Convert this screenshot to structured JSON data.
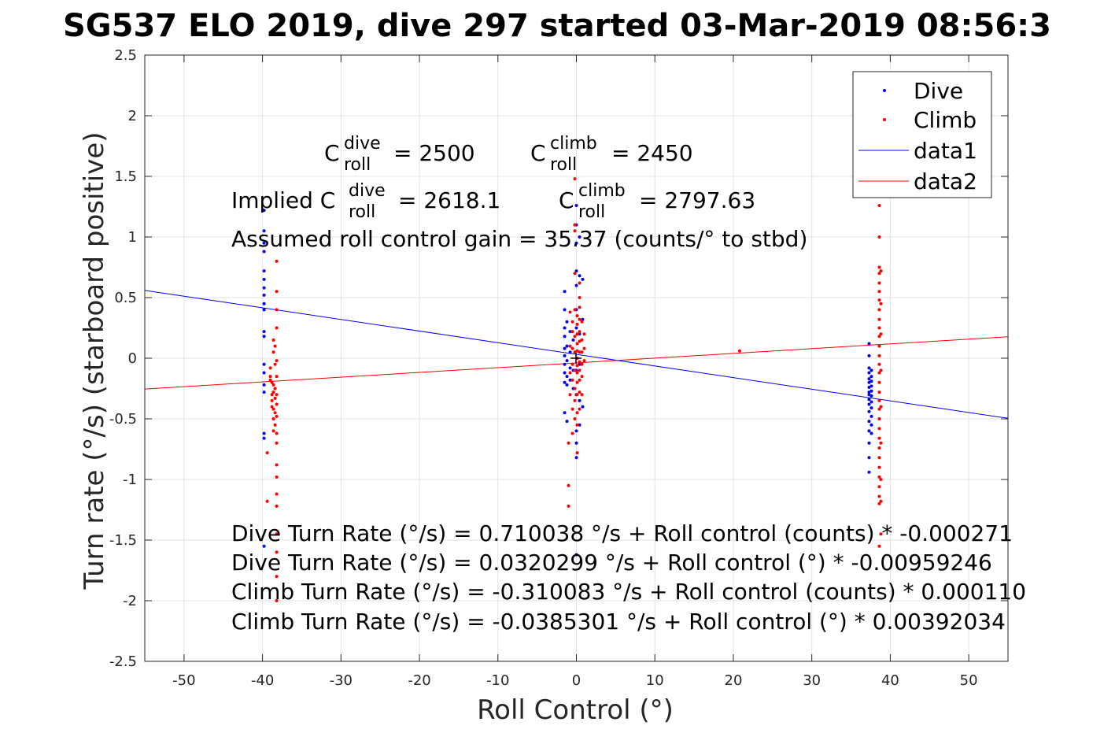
{
  "chart_data": {
    "type": "scatter",
    "title": "SG537 ELO 2019, dive 297 started 03-Mar-2019 08:56:3",
    "xlabel": "Roll Control (°)",
    "ylabel": "Turn rate (°/s) (starboard positive)",
    "xlim": [
      -55,
      55
    ],
    "ylim": [
      -2.5,
      2.5
    ],
    "xticks": [
      -50,
      -40,
      -30,
      -20,
      -10,
      0,
      10,
      20,
      30,
      40,
      50
    ],
    "yticks": [
      2.5,
      2,
      1.5,
      1,
      0.5,
      0,
      -0.5,
      -1,
      -1.5,
      -2,
      -2.5
    ],
    "grid": true,
    "legend_position": "top-right",
    "series": [
      {
        "name": "Dive",
        "kind": "points",
        "color": "#0000ff",
        "points": [
          [
            -39.8,
            1.22
          ],
          [
            -39.8,
            1.05
          ],
          [
            -39.8,
            0.95
          ],
          [
            -39.8,
            0.88
          ],
          [
            -39.8,
            0.72
          ],
          [
            -39.8,
            0.65
          ],
          [
            -39.8,
            0.58
          ],
          [
            -39.8,
            0.52
          ],
          [
            -39.8,
            0.45
          ],
          [
            -39.8,
            0.4
          ],
          [
            -39.8,
            0.22
          ],
          [
            -39.8,
            0.18
          ],
          [
            -39.8,
            -0.05
          ],
          [
            -39.8,
            -0.12
          ],
          [
            -39.8,
            -0.22
          ],
          [
            -39.8,
            -0.28
          ],
          [
            -39.8,
            -0.62
          ],
          [
            -39.8,
            -0.66
          ],
          [
            -39.8,
            -1.55
          ],
          [
            -1.5,
            0.55
          ],
          [
            -1.5,
            0.4
          ],
          [
            -1.5,
            0.25
          ],
          [
            -1.5,
            0.18
          ],
          [
            -1.5,
            0.08
          ],
          [
            -1.5,
            0.02
          ],
          [
            -1.5,
            -0.05
          ],
          [
            -1.5,
            -0.12
          ],
          [
            -1.5,
            -0.2
          ],
          [
            -1.5,
            -0.45
          ],
          [
            -1.2,
            0.3
          ],
          [
            -1.2,
            0.1
          ],
          [
            -1.2,
            -0.02
          ],
          [
            -1.2,
            -0.15
          ],
          [
            -1.2,
            -0.22
          ],
          [
            -1.2,
            -0.52
          ],
          [
            -0.8,
            0.22
          ],
          [
            -0.8,
            0.05
          ],
          [
            -0.8,
            -0.08
          ],
          [
            -0.8,
            -0.18
          ],
          [
            -0.4,
            0.15
          ],
          [
            -0.4,
            -0.1
          ],
          [
            -0.4,
            -0.25
          ],
          [
            0.0,
            1.26
          ],
          [
            0.0,
            1.1
          ],
          [
            0.0,
            0.95
          ],
          [
            0.0,
            0.72
          ],
          [
            0.0,
            0.6
          ],
          [
            0.0,
            0.4
          ],
          [
            0.0,
            0.25
          ],
          [
            0.0,
            -0.1
          ],
          [
            0.0,
            -0.3
          ],
          [
            0.0,
            -0.6
          ],
          [
            0.0,
            -0.7
          ],
          [
            0.0,
            -0.82
          ],
          [
            0.0,
            -1.62
          ],
          [
            0.4,
            1.0
          ],
          [
            0.4,
            0.68
          ],
          [
            0.4,
            0.2
          ],
          [
            0.4,
            -0.05
          ],
          [
            0.4,
            -0.35
          ],
          [
            0.4,
            -0.55
          ],
          [
            0.8,
            0.65
          ],
          [
            0.8,
            0.32
          ],
          [
            0.8,
            -0.4
          ],
          [
            37.3,
            0.12
          ],
          [
            37.3,
            0.02
          ],
          [
            37.3,
            -0.08
          ],
          [
            37.3,
            -0.12
          ],
          [
            37.3,
            -0.17
          ],
          [
            37.3,
            -0.2
          ],
          [
            37.3,
            -0.24
          ],
          [
            37.3,
            -0.28
          ],
          [
            37.3,
            -0.3
          ],
          [
            37.3,
            -0.34
          ],
          [
            37.3,
            -0.38
          ],
          [
            37.3,
            -0.44
          ],
          [
            37.3,
            -0.52
          ],
          [
            37.3,
            -0.6
          ],
          [
            37.3,
            -0.7
          ],
          [
            37.3,
            -0.82
          ],
          [
            37.3,
            -0.94
          ],
          [
            37.6,
            -0.1
          ],
          [
            37.6,
            -0.15
          ],
          [
            37.6,
            -0.19
          ],
          [
            37.6,
            -0.23
          ],
          [
            37.6,
            -0.27
          ],
          [
            37.6,
            -0.31
          ],
          [
            37.6,
            -0.36
          ],
          [
            37.6,
            -0.41
          ],
          [
            37.6,
            -0.48
          ],
          [
            37.6,
            -0.55
          ],
          [
            37.6,
            -0.62
          ]
        ]
      },
      {
        "name": "Climb",
        "kind": "points",
        "color": "#ff0000",
        "points": [
          [
            -39.0,
            -0.08
          ],
          [
            -39.0,
            -0.15
          ],
          [
            -39.0,
            -0.18
          ],
          [
            -38.8,
            -0.2
          ],
          [
            -38.8,
            -0.3
          ],
          [
            -38.8,
            -0.35
          ],
          [
            -38.8,
            -0.4
          ],
          [
            -38.6,
            0.15
          ],
          [
            -38.6,
            0.05
          ],
          [
            -38.6,
            -0.22
          ],
          [
            -38.6,
            -0.28
          ],
          [
            -38.6,
            -0.42
          ],
          [
            -38.6,
            -0.5
          ],
          [
            -38.6,
            -0.6
          ],
          [
            -38.4,
            0.1
          ],
          [
            -38.4,
            -0.05
          ],
          [
            -38.4,
            -0.25
          ],
          [
            -38.4,
            -0.33
          ],
          [
            -38.4,
            -0.45
          ],
          [
            -38.4,
            -0.55
          ],
          [
            -38.2,
            0.8
          ],
          [
            -38.2,
            0.55
          ],
          [
            -38.2,
            0.4
          ],
          [
            -38.2,
            0.25
          ],
          [
            -38.2,
            -0.02
          ],
          [
            -38.2,
            -0.15
          ],
          [
            -38.2,
            -0.3
          ],
          [
            -38.2,
            -0.38
          ],
          [
            -38.2,
            -0.48
          ],
          [
            -38.2,
            -0.62
          ],
          [
            -38.2,
            -0.7
          ],
          [
            -38.2,
            -0.88
          ],
          [
            -38.2,
            -0.98
          ],
          [
            -38.2,
            -1.12
          ],
          [
            -38.2,
            -1.22
          ],
          [
            -38.2,
            -1.45
          ],
          [
            -38.2,
            -1.6
          ],
          [
            -38.2,
            -1.8
          ],
          [
            -38.2,
            -2.0
          ],
          [
            -39.4,
            -1.18
          ],
          [
            -39.4,
            -0.78
          ],
          [
            -1.0,
            -1.05
          ],
          [
            -1.0,
            -1.22
          ],
          [
            -1.0,
            -0.7
          ],
          [
            -0.8,
            0.38
          ],
          [
            -0.8,
            0.1
          ],
          [
            -0.8,
            -0.12
          ],
          [
            -0.8,
            -0.3
          ],
          [
            -0.5,
            0.3
          ],
          [
            -0.5,
            0.22
          ],
          [
            -0.5,
            0.08
          ],
          [
            -0.5,
            -0.05
          ],
          [
            -0.5,
            -0.18
          ],
          [
            -0.5,
            -0.42
          ],
          [
            -0.5,
            -0.62
          ],
          [
            -0.2,
            1.48
          ],
          [
            -0.2,
            1.1
          ],
          [
            -0.2,
            1.05
          ],
          [
            -0.2,
            0.7
          ],
          [
            -0.2,
            0.4
          ],
          [
            -0.2,
            0.18
          ],
          [
            -0.2,
            0.05
          ],
          [
            -0.2,
            -0.1
          ],
          [
            -0.2,
            -0.25
          ],
          [
            -0.2,
            -0.35
          ],
          [
            -0.2,
            -0.5
          ],
          [
            0.1,
            0.35
          ],
          [
            0.1,
            0.28
          ],
          [
            0.1,
            0.2
          ],
          [
            0.1,
            0.12
          ],
          [
            0.1,
            0.06
          ],
          [
            0.1,
            0.0
          ],
          [
            0.1,
            -0.06
          ],
          [
            0.1,
            -0.12
          ],
          [
            0.1,
            -0.2
          ],
          [
            0.1,
            -0.3
          ],
          [
            0.1,
            -0.45
          ],
          [
            0.1,
            -0.55
          ],
          [
            0.1,
            -0.78
          ],
          [
            0.4,
            0.62
          ],
          [
            0.4,
            0.5
          ],
          [
            0.4,
            0.42
          ],
          [
            0.4,
            0.32
          ],
          [
            0.4,
            0.22
          ],
          [
            0.4,
            0.14
          ],
          [
            0.4,
            0.05
          ],
          [
            0.4,
            -0.03
          ],
          [
            0.4,
            -0.1
          ],
          [
            0.4,
            -0.18
          ],
          [
            0.4,
            -0.28
          ],
          [
            0.4,
            -0.42
          ],
          [
            0.7,
            0.3
          ],
          [
            0.7,
            0.15
          ],
          [
            0.7,
            0.05
          ],
          [
            0.7,
            -0.05
          ],
          [
            0.7,
            -0.15
          ],
          [
            0.7,
            -0.3
          ],
          [
            1.0,
            0.2
          ],
          [
            1.0,
            0.08
          ],
          [
            1.0,
            -0.02
          ],
          [
            20.8,
            0.06
          ],
          [
            38.6,
            1.26
          ],
          [
            38.6,
            1.0
          ],
          [
            38.6,
            0.75
          ],
          [
            38.6,
            0.7
          ],
          [
            38.6,
            0.62
          ],
          [
            38.6,
            0.55
          ],
          [
            38.6,
            0.48
          ],
          [
            38.6,
            0.4
          ],
          [
            38.6,
            0.32
          ],
          [
            38.6,
            0.25
          ],
          [
            38.6,
            0.18
          ],
          [
            38.6,
            0.1
          ],
          [
            38.6,
            0.02
          ],
          [
            38.6,
            -0.05
          ],
          [
            38.6,
            -0.12
          ],
          [
            38.6,
            -0.2
          ],
          [
            38.6,
            -0.28
          ],
          [
            38.6,
            -0.35
          ],
          [
            38.6,
            -0.42
          ],
          [
            38.6,
            -0.5
          ],
          [
            38.6,
            -0.58
          ],
          [
            38.6,
            -0.66
          ],
          [
            38.6,
            -0.74
          ],
          [
            38.6,
            -0.82
          ],
          [
            38.6,
            -0.9
          ],
          [
            38.6,
            -0.98
          ],
          [
            38.6,
            -1.06
          ],
          [
            38.6,
            -1.14
          ],
          [
            38.6,
            -1.2
          ],
          [
            38.6,
            -1.55
          ],
          [
            38.8,
            0.72
          ],
          [
            38.8,
            0.45
          ],
          [
            38.8,
            0.2
          ],
          [
            38.8,
            -0.1
          ],
          [
            38.8,
            -0.4
          ],
          [
            38.8,
            -0.7
          ],
          [
            38.8,
            -1.0
          ],
          [
            38.8,
            -1.18
          ],
          [
            38.8,
            -1.45
          ]
        ]
      },
      {
        "name": "data1",
        "kind": "line",
        "color": "#0000ff",
        "x": [
          -55,
          55
        ],
        "y": [
          0.5596,
          -0.4955
        ]
      },
      {
        "name": "data2",
        "kind": "line",
        "color": "#ff0000",
        "x": [
          -55,
          55
        ],
        "y": [
          -0.2542,
          0.1771
        ]
      }
    ],
    "annotations": {
      "c_dive_lbl": "C",
      "c_dive_sup": "dive",
      "c_dive_sub": "roll",
      "c_dive_val": "= 2500",
      "c_climb_lbl": "C",
      "c_climb_sup": "climb",
      "c_climb_sub": "roll",
      "c_climb_val": "= 2450",
      "imp_prefix": "Implied C",
      "imp_dive_sup": "dive",
      "imp_dive_sub": "roll",
      "imp_dive_val": "= 2618.1",
      "imp_climb_lbl": "C",
      "imp_climb_sup": "climb",
      "imp_climb_sub": "roll",
      "imp_climb_val": "= 2797.63",
      "gain": "Assumed roll control gain = 35.37 (counts/° to stbd)",
      "eq1": "Dive Turn Rate (°/s) = 0.710038 °/s + Roll control (counts) * -0.000271",
      "eq2": "Dive Turn Rate (°/s) = 0.0320299 °/s + Roll control (°) * -0.00959246",
      "eq3": "Climb Turn Rate (°/s) = -0.310083 °/s + Roll control (counts) * 0.000110",
      "eq4": "Climb Turn Rate (°/s) = -0.0385301 °/s + Roll control (°) * 0.00392034"
    }
  }
}
